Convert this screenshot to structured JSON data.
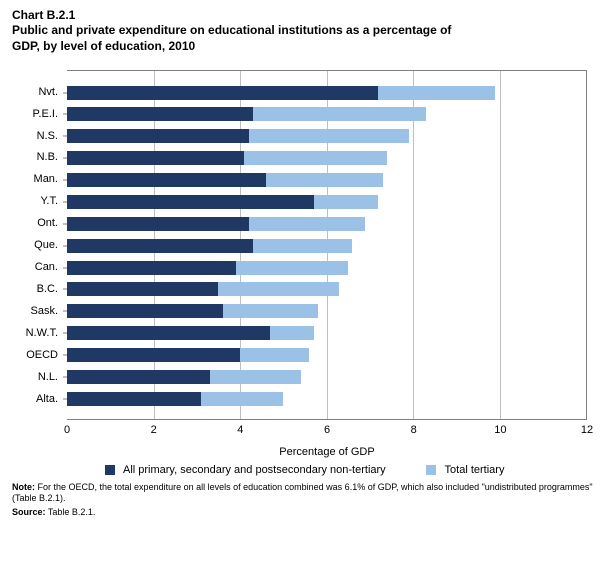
{
  "chartNumber": "Chart B.2.1",
  "chartTitle": "Public and private expenditure on educational institutions as a percentage of GDP, by level of education, 2010",
  "chart": {
    "type": "bar",
    "orientation": "horizontal",
    "stacked": true,
    "xAxis": {
      "title": "Percentage of GDP",
      "min": 0,
      "max": 12,
      "tickStep": 2,
      "ticks": [
        0,
        2,
        4,
        6,
        8,
        10,
        12
      ],
      "titleFontSize": 11,
      "tickFontSize": 11,
      "gridColor": "#bfbfbf",
      "axisColor": "#808080"
    },
    "yAxis": {
      "labelFontSize": 11
    },
    "series": [
      {
        "key": "seg1",
        "label": "All primary, secondary and postsecondary non-tertiary",
        "color": "#1f3864"
      },
      {
        "key": "seg2",
        "label": "Total tertiary",
        "color": "#9bc2e6"
      }
    ],
    "categories": [
      {
        "label": "Nvt.",
        "seg1": 7.2,
        "seg2": 2.7
      },
      {
        "label": "P.E.I.",
        "seg1": 4.3,
        "seg2": 4.0
      },
      {
        "label": "N.S.",
        "seg1": 4.2,
        "seg2": 3.7
      },
      {
        "label": "N.B.",
        "seg1": 4.1,
        "seg2": 3.3
      },
      {
        "label": "Man.",
        "seg1": 4.6,
        "seg2": 2.7
      },
      {
        "label": "Y.T.",
        "seg1": 5.7,
        "seg2": 1.5
      },
      {
        "label": "Ont.",
        "seg1": 4.2,
        "seg2": 2.7
      },
      {
        "label": "Que.",
        "seg1": 4.3,
        "seg2": 2.3
      },
      {
        "label": "Can.",
        "seg1": 3.9,
        "seg2": 2.6
      },
      {
        "label": "B.C.",
        "seg1": 3.5,
        "seg2": 2.8
      },
      {
        "label": "Sask.",
        "seg1": 3.6,
        "seg2": 2.2
      },
      {
        "label": "N.W.T.",
        "seg1": 4.7,
        "seg2": 1.0
      },
      {
        "label": "OECD",
        "seg1": 4.0,
        "seg2": 1.6
      },
      {
        "label": "N.L.",
        "seg1": 3.3,
        "seg2": 2.1
      },
      {
        "label": "Alta.",
        "seg1": 3.1,
        "seg2": 1.9
      }
    ],
    "barHeightPx": 14,
    "backgroundColor": "#ffffff"
  },
  "legend": {
    "items": [
      {
        "swatch": "sw1",
        "label": "All primary, secondary and postsecondary non-tertiary"
      },
      {
        "swatch": "sw2",
        "label": "Total tertiary"
      }
    ],
    "fontSize": 11
  },
  "note": {
    "label": "Note:",
    "text": "For the OECD, the total expenditure on all levels of education combined was 6.1% of GDP, which also included \"undistributed programmes\" (Table B.2.1).",
    "fontSize": 9
  },
  "source": {
    "label": "Source:",
    "text": "Table B.2.1.",
    "fontSize": 9
  }
}
